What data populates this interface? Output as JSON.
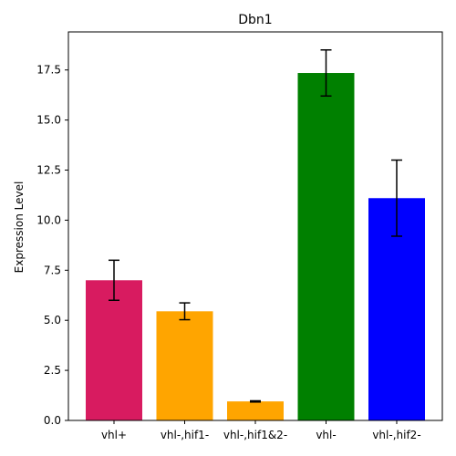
{
  "chart_data": {
    "type": "bar",
    "title": "Dbn1",
    "xlabel": "",
    "ylabel": "Expression Level",
    "categories": [
      "vhl+",
      "vhl-,hif1-",
      "vhl-,hif1&2-",
      "vhl-",
      "vhl-,hif2-"
    ],
    "values": [
      7.0,
      5.45,
      0.95,
      17.35,
      11.1
    ],
    "errors": [
      1.0,
      0.42,
      0.03,
      1.15,
      1.9
    ],
    "colors": [
      "#d81b60",
      "#ffa500",
      "#ffa500",
      "#008000",
      "#0000ff"
    ],
    "ylim": [
      0,
      19.4
    ],
    "yticks": [
      0.0,
      2.5,
      5.0,
      7.5,
      10.0,
      12.5,
      15.0,
      17.5
    ],
    "ytick_labels": [
      "0.0",
      "2.5",
      "5.0",
      "7.5",
      "10.0",
      "12.5",
      "15.0",
      "17.5"
    ],
    "grid": false,
    "legend": "none"
  }
}
